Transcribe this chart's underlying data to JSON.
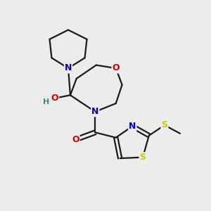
{
  "background_color": "#ececec",
  "bond_color": "#1a1a1a",
  "atom_colors": {
    "N": "#0000cc",
    "O": "#cc0000",
    "S": "#cccc00",
    "H": "#448888"
  },
  "figsize": [
    3.0,
    3.0
  ],
  "dpi": 100
}
